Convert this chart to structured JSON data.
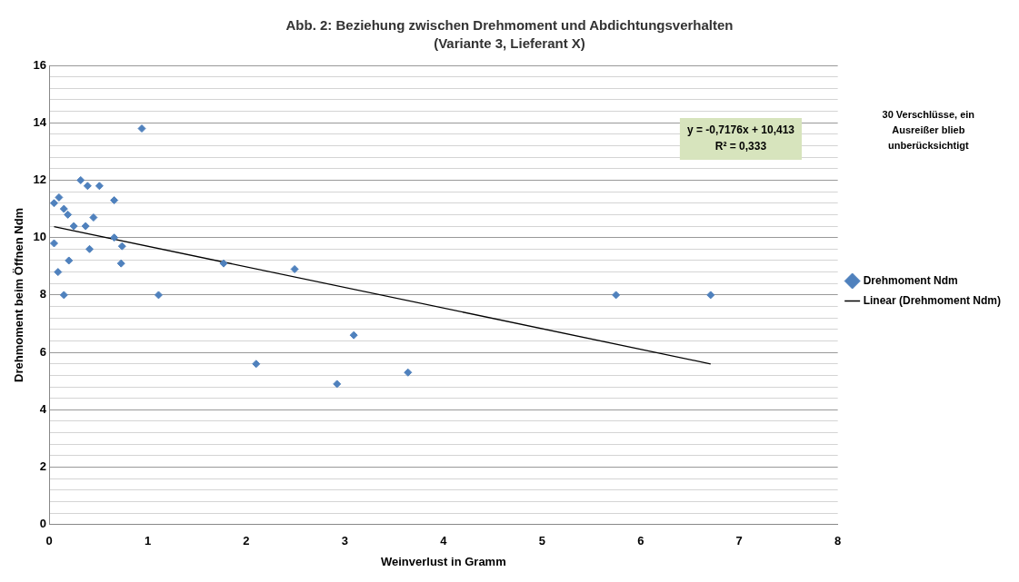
{
  "chart_data": {
    "type": "scatter",
    "title": "Abb. 2: Beziehung zwischen Drehmoment und Abdichtungsverhalten",
    "subtitle": "(Variante 3, Lieferant X)",
    "xlabel": "Weinverlust in Gramm",
    "ylabel": "Drehmoment beim Öffnen Ndm",
    "xlim": [
      0,
      8
    ],
    "xticks": [
      0,
      1,
      2,
      3,
      4,
      5,
      6,
      7,
      8
    ],
    "ylim": [
      0,
      16
    ],
    "yticks": [
      0,
      {
        "value": 0.4,
        "label": null
      },
      {
        "value": 0.8,
        "label": null
      },
      {
        "value": 1.2,
        "label": null
      },
      {
        "value": 1.6,
        "label": null
      },
      2,
      {
        "value": 2.4,
        "label": null
      },
      {
        "value": 2.8,
        "label": null
      },
      {
        "value": 3.2,
        "label": null
      },
      {
        "value": 3.6,
        "label": null
      },
      4,
      {
        "value": 4.4,
        "label": null
      },
      {
        "value": 4.8,
        "label": null
      },
      {
        "value": 5.2,
        "label": null
      },
      {
        "value": 5.6,
        "label": null
      },
      6,
      {
        "value": 6.4,
        "label": null
      },
      {
        "value": 6.8,
        "label": null
      },
      {
        "value": 7.2,
        "label": null
      },
      {
        "value": 7.6,
        "label": null
      },
      8,
      {
        "value": 8.4,
        "label": null
      },
      {
        "value": 8.8,
        "label": null
      },
      {
        "value": 9.2,
        "label": null
      },
      {
        "value": 9.6,
        "label": null
      },
      10,
      {
        "value": 10.4,
        "label": null
      },
      {
        "value": 10.8,
        "label": null
      },
      {
        "value": 11.2,
        "label": null
      },
      {
        "value": 11.6,
        "label": null
      },
      12,
      {
        "value": 12.4,
        "label": null
      },
      {
        "value": 12.8,
        "label": null
      },
      {
        "value": 13.2,
        "label": null
      },
      {
        "value": 13.6,
        "label": null
      },
      14,
      {
        "value": 14.4,
        "label": null
      },
      {
        "value": 14.8,
        "label": null
      },
      {
        "value": 15.2,
        "label": null
      },
      {
        "value": 15.6,
        "label": null
      },
      16
    ],
    "grid": "y",
    "legend": "right",
    "series": [
      {
        "name": "Drehmoment Ndm",
        "marker": "diamond",
        "color": "#4f81bd",
        "x": [
          0.05,
          0.05,
          0.1,
          0.09,
          0.15,
          0.19,
          0.15,
          0.2,
          0.25,
          0.32,
          0.37,
          0.39,
          0.41,
          0.45,
          0.51,
          0.66,
          0.66,
          0.74,
          0.73,
          0.94,
          1.11,
          1.77,
          2.49,
          2.1,
          2.92,
          3.09,
          3.64,
          5.75,
          6.71
        ],
        "values": [
          11.2,
          9.8,
          11.4,
          8.8,
          11.0,
          10.8,
          8.0,
          9.2,
          10.4,
          12.0,
          10.4,
          11.8,
          9.6,
          10.7,
          11.8,
          11.3,
          10.0,
          9.7,
          9.1,
          13.8,
          8.0,
          9.1,
          8.9,
          5.6,
          4.9,
          6.6,
          5.3,
          8.0,
          8.0
        ]
      },
      {
        "name": "Linear (Drehmoment Ndm)",
        "type": "line",
        "marker": "none",
        "color": "#000000",
        "x": [
          0.05,
          6.71
        ],
        "values": [
          10.38,
          5.6
        ]
      }
    ],
    "annotations": [
      "y = -0,7176x + 10,413",
      "R² = 0,333",
      "30 Verschlüsse, ein Ausreißer blieb unberücksichtigt"
    ]
  }
}
